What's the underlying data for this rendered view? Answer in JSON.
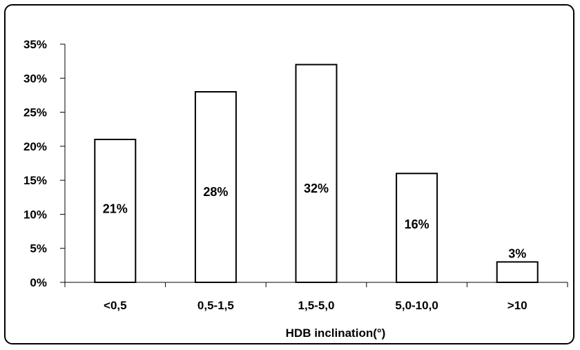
{
  "chart_data": {
    "type": "bar",
    "title": "",
    "xlabel": "HDB inclination(°)",
    "ylabel": "",
    "categories": [
      "<0,5",
      "0,5-1,5",
      "1,5-5,0",
      "5,0-10,0",
      ">10"
    ],
    "values": [
      21,
      28,
      32,
      16,
      3
    ],
    "data_labels": [
      "21%",
      "28%",
      "32%",
      "16%",
      "3%"
    ],
    "ylim": [
      0,
      35
    ],
    "y_ticks": [
      "0%",
      "5%",
      "10%",
      "15%",
      "20%",
      "25%",
      "30%",
      "35%"
    ],
    "grid": false,
    "legend": "none",
    "bar_fill": "#ffffff",
    "bar_stroke": "#000000"
  }
}
